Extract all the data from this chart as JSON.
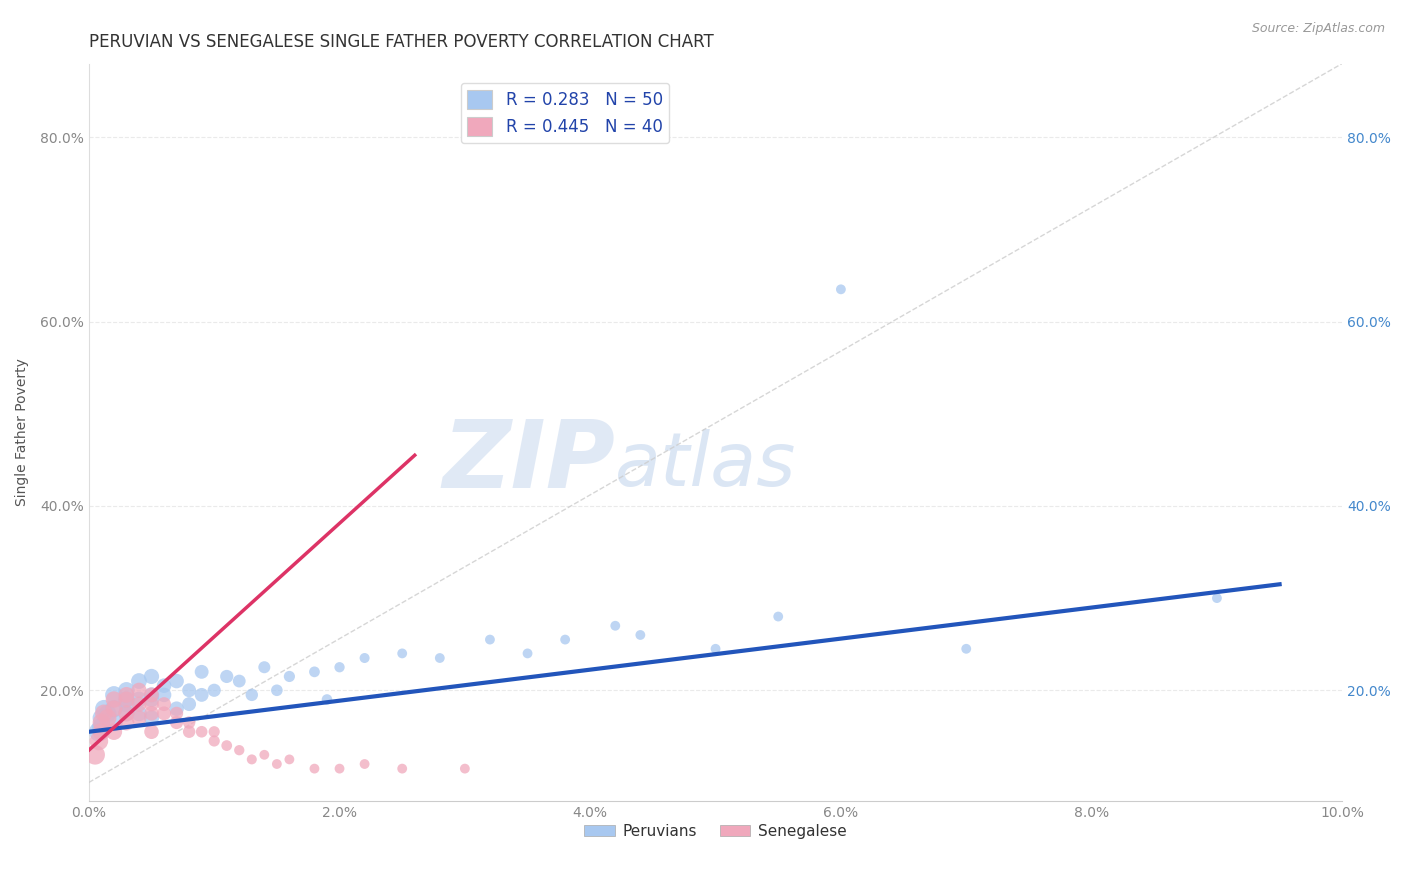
{
  "title": "PERUVIAN VS SENEGALESE SINGLE FATHER POVERTY CORRELATION CHART",
  "source_text": "Source: ZipAtlas.com",
  "ylabel": "Single Father Poverty",
  "watermark_zip": "ZIP",
  "watermark_atlas": "atlas",
  "xlim": [
    0.0,
    0.1
  ],
  "ylim": [
    0.08,
    0.88
  ],
  "xtick_labels": [
    "0.0%",
    "",
    "2.0%",
    "",
    "4.0%",
    "",
    "6.0%",
    "",
    "8.0%",
    "",
    "10.0%"
  ],
  "xtick_vals": [
    0.0,
    0.01,
    0.02,
    0.03,
    0.04,
    0.05,
    0.06,
    0.07,
    0.08,
    0.09,
    0.1
  ],
  "ytick_labels": [
    "20.0%",
    "40.0%",
    "60.0%",
    "80.0%"
  ],
  "ytick_vals": [
    0.2,
    0.4,
    0.6,
    0.8
  ],
  "legend_r1": "R = 0.283",
  "legend_n1": "N = 50",
  "legend_r2": "R = 0.445",
  "legend_n2": "N = 40",
  "legend_peruvians": "Peruvians",
  "legend_senegalese": "Senegalese",
  "blue_color": "#a8c8f0",
  "pink_color": "#f0a8bc",
  "blue_line_color": "#2255bb",
  "pink_line_color": "#dd3366",
  "ref_line_color": "#cccccc",
  "background_color": "#ffffff",
  "grid_color": "#e8e8e8",
  "title_color": "#333333",
  "axis_label_color": "#555555",
  "tick_color": "#888888",
  "right_tick_color": "#4488cc",
  "blue_scatter": {
    "x": [
      0.0008,
      0.001,
      0.001,
      0.0012,
      0.0015,
      0.002,
      0.002,
      0.002,
      0.003,
      0.003,
      0.003,
      0.003,
      0.004,
      0.004,
      0.004,
      0.005,
      0.005,
      0.005,
      0.005,
      0.006,
      0.006,
      0.007,
      0.007,
      0.008,
      0.008,
      0.009,
      0.009,
      0.01,
      0.011,
      0.012,
      0.013,
      0.014,
      0.015,
      0.016,
      0.018,
      0.019,
      0.02,
      0.022,
      0.025,
      0.028,
      0.032,
      0.035,
      0.038,
      0.042,
      0.044,
      0.05,
      0.055,
      0.06,
      0.07,
      0.09
    ],
    "y": [
      0.155,
      0.16,
      0.17,
      0.18,
      0.175,
      0.165,
      0.18,
      0.195,
      0.175,
      0.185,
      0.19,
      0.2,
      0.175,
      0.19,
      0.21,
      0.17,
      0.19,
      0.195,
      0.215,
      0.195,
      0.205,
      0.18,
      0.21,
      0.185,
      0.2,
      0.195,
      0.22,
      0.2,
      0.215,
      0.21,
      0.195,
      0.225,
      0.2,
      0.215,
      0.22,
      0.19,
      0.225,
      0.235,
      0.24,
      0.235,
      0.255,
      0.24,
      0.255,
      0.27,
      0.26,
      0.245,
      0.28,
      0.635,
      0.245,
      0.3
    ],
    "sizes": [
      200,
      180,
      160,
      160,
      160,
      160,
      160,
      160,
      140,
      140,
      140,
      140,
      130,
      130,
      130,
      120,
      120,
      120,
      120,
      110,
      110,
      110,
      110,
      100,
      100,
      100,
      100,
      90,
      90,
      85,
      80,
      75,
      70,
      65,
      60,
      58,
      55,
      52,
      50,
      50,
      50,
      50,
      50,
      50,
      50,
      50,
      50,
      50,
      50,
      50
    ]
  },
  "pink_scatter": {
    "x": [
      0.0005,
      0.0008,
      0.001,
      0.001,
      0.0012,
      0.0015,
      0.002,
      0.002,
      0.002,
      0.003,
      0.003,
      0.003,
      0.003,
      0.004,
      0.004,
      0.004,
      0.005,
      0.005,
      0.005,
      0.005,
      0.006,
      0.006,
      0.007,
      0.007,
      0.008,
      0.008,
      0.009,
      0.01,
      0.01,
      0.011,
      0.012,
      0.013,
      0.014,
      0.015,
      0.016,
      0.018,
      0.02,
      0.022,
      0.025,
      0.03
    ],
    "y": [
      0.13,
      0.145,
      0.155,
      0.165,
      0.175,
      0.17,
      0.155,
      0.18,
      0.19,
      0.165,
      0.175,
      0.19,
      0.195,
      0.17,
      0.185,
      0.2,
      0.155,
      0.175,
      0.185,
      0.195,
      0.175,
      0.185,
      0.165,
      0.175,
      0.155,
      0.165,
      0.155,
      0.145,
      0.155,
      0.14,
      0.135,
      0.125,
      0.13,
      0.12,
      0.125,
      0.115,
      0.115,
      0.12,
      0.115,
      0.115
    ],
    "sizes": [
      200,
      180,
      160,
      160,
      160,
      160,
      140,
      140,
      140,
      130,
      130,
      130,
      130,
      120,
      120,
      120,
      110,
      110,
      110,
      110,
      100,
      100,
      90,
      90,
      80,
      80,
      70,
      65,
      65,
      60,
      55,
      52,
      50,
      50,
      50,
      50,
      50,
      50,
      50,
      50
    ]
  },
  "title_fontsize": 12,
  "axis_fontsize": 10,
  "tick_fontsize": 10,
  "legend_fontsize": 12
}
